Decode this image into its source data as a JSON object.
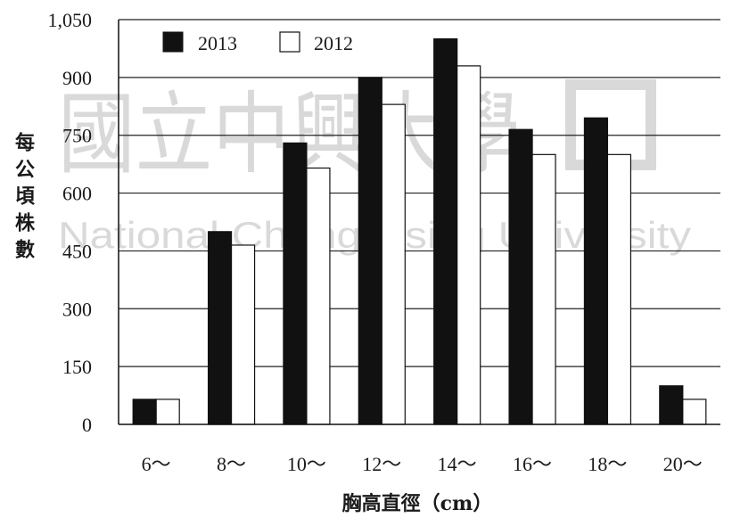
{
  "watermark": {
    "chinese": "國立中興大學",
    "english": "National Chung Hsing University"
  },
  "chart_data": {
    "type": "bar",
    "ylabel": "每公頃株數",
    "xlabel": "胸高直徑（cm）",
    "ylim": [
      0,
      1050
    ],
    "yticks": [
      "0",
      "150",
      "300",
      "450",
      "600",
      "750",
      "900",
      "1,050"
    ],
    "ytick_values": [
      0,
      150,
      300,
      450,
      600,
      750,
      900,
      1050
    ],
    "categories": [
      "6～",
      "8～",
      "10～",
      "12～",
      "14～",
      "16～",
      "18～",
      "20～"
    ],
    "grid": true,
    "legend_position": "top-left",
    "series": [
      {
        "name": "2013",
        "color": "#111111",
        "values": [
          65,
          500,
          730,
          900,
          1000,
          765,
          795,
          100
        ]
      },
      {
        "name": "2012",
        "color": "#ffffff",
        "values": [
          65,
          465,
          665,
          830,
          930,
          700,
          700,
          65
        ]
      }
    ]
  }
}
